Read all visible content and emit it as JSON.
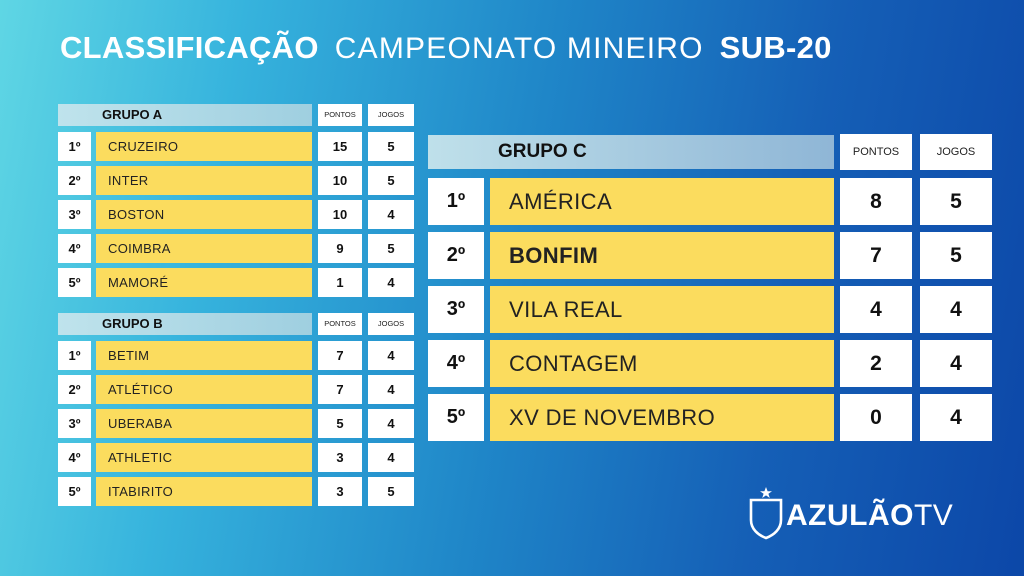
{
  "title": {
    "part1": "CLASSIFICAÇÃO",
    "part2": "CAMPEONATO MINEIRO",
    "part3": "SUB-20"
  },
  "column_headers": {
    "points": "PONTOS",
    "games": "JOGOS"
  },
  "groups": [
    {
      "name": "GRUPO A",
      "rows": [
        {
          "pos": "1º",
          "team": "CRUZEIRO",
          "points": "15",
          "games": "5"
        },
        {
          "pos": "2º",
          "team": "INTER",
          "points": "10",
          "games": "5"
        },
        {
          "pos": "3º",
          "team": "BOSTON",
          "points": "10",
          "games": "4"
        },
        {
          "pos": "4º",
          "team": "COIMBRA",
          "points": "9",
          "games": "5"
        },
        {
          "pos": "5º",
          "team": "MAMORÉ",
          "points": "1",
          "games": "4"
        }
      ]
    },
    {
      "name": "GRUPO B",
      "rows": [
        {
          "pos": "1º",
          "team": "BETIM",
          "points": "7",
          "games": "4"
        },
        {
          "pos": "2º",
          "team": "ATLÉTICO",
          "points": "7",
          "games": "4"
        },
        {
          "pos": "3º",
          "team": "UBERABA",
          "points": "5",
          "games": "4"
        },
        {
          "pos": "4º",
          "team": "ATHLETIC",
          "points": "3",
          "games": "4"
        },
        {
          "pos": "5º",
          "team": "ITABIRITO",
          "points": "3",
          "games": "5"
        }
      ]
    },
    {
      "name": "GRUPO C",
      "rows": [
        {
          "pos": "1º",
          "team": "AMÉRICA",
          "points": "8",
          "games": "5"
        },
        {
          "pos": "2º",
          "team": "BONFIM",
          "points": "7",
          "games": "5"
        },
        {
          "pos": "3º",
          "team": "VILA REAL",
          "points": "4",
          "games": "4"
        },
        {
          "pos": "4º",
          "team": "CONTAGEM",
          "points": "2",
          "games": "4"
        },
        {
          "pos": "5º",
          "team": "XV DE NOVEMBRO",
          "points": "0",
          "games": "4"
        }
      ]
    }
  ],
  "logo": {
    "part1": "AZULÃO",
    "part2": "TV",
    "icon": "shield-star-icon"
  },
  "colors": {
    "team_cell": "#fbdc5e",
    "background_start": "#5fd6e4",
    "background_end": "#0c47a8",
    "header_cell": "#bfe3ec"
  }
}
